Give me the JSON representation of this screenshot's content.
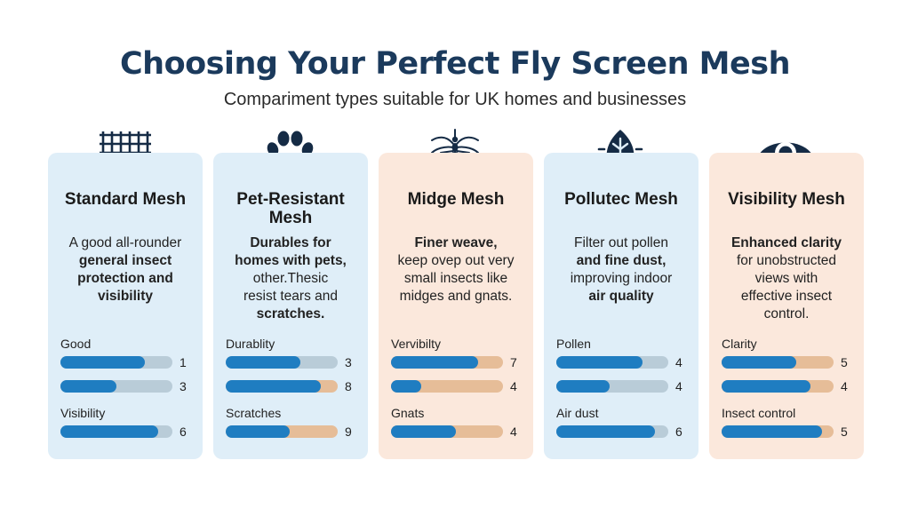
{
  "header": {
    "title": "Choosing Your Perfect Fly Screen Mesh",
    "subtitle": "Compariment types suitable for UK homes and businesses"
  },
  "colors": {
    "title": "#1b3a5c",
    "card_blue": "#dfeef8",
    "card_peach": "#fbe8dc",
    "bar_fill": "#1f7dc1",
    "track_grey": "#b9ccd8",
    "track_tan": "#e6bd98"
  },
  "cards": [
    {
      "icon": "grid-mesh-icon",
      "title": "Standard Mesh",
      "desc": [
        "A good all-rounder",
        "general insect",
        "protection and",
        "visibility"
      ],
      "metrics": [
        {
          "label": "Good",
          "value": "1",
          "fill": 0.75,
          "track": "grey"
        },
        {
          "label": "",
          "value": "3",
          "fill": 0.5,
          "track": "grey"
        },
        {
          "label": "Visibility",
          "value": "6",
          "fill": 0.87,
          "track": "grey"
        }
      ]
    },
    {
      "icon": "paw-icon",
      "title": "Pet-Resistant Mesh",
      "desc": [
        "Durables for",
        "homes with pets,",
        "other.Thesic",
        "resist tears and",
        "scratches."
      ],
      "metrics": [
        {
          "label": "Durablity",
          "value": "3",
          "fill": 0.67,
          "track": "grey"
        },
        {
          "label": "",
          "value": "8",
          "fill": 0.85,
          "track": "tan"
        },
        {
          "label": "Scratches",
          "value": "9",
          "fill": 0.57,
          "track": "tan"
        }
      ]
    },
    {
      "icon": "mosquito-icon",
      "title": "Midge Mesh",
      "desc": [
        "Finer weave,",
        "keep ovep out very",
        "small insects like",
        "midges and gnats."
      ],
      "metrics": [
        {
          "label": "Vervibilty",
          "value": "7",
          "fill": 0.78,
          "track": "tan"
        },
        {
          "label": "",
          "value": "4",
          "fill": 0.27,
          "track": "tan"
        },
        {
          "label": "Gnats",
          "value": "4",
          "fill": 0.58,
          "track": "tan"
        }
      ]
    },
    {
      "icon": "leaf-icon",
      "title": "Pollutec Mesh",
      "desc": [
        "Filter out pollen",
        "and fine dust,",
        "improving indoor",
        "air quality"
      ],
      "metrics": [
        {
          "label": "Pollen",
          "value": "4",
          "fill": 0.77,
          "track": "grey"
        },
        {
          "label": "",
          "value": "4",
          "fill": 0.48,
          "track": "grey"
        },
        {
          "label": "Air dust",
          "value": "6",
          "fill": 0.88,
          "track": "grey"
        }
      ]
    },
    {
      "icon": "eye-icon",
      "title": "Visibility Mesh",
      "desc": [
        "Enhanced clarity",
        "for unobstructed",
        "views with",
        "effective insect",
        "control."
      ],
      "metrics": [
        {
          "label": "Clarity",
          "value": "5",
          "fill": 0.67,
          "track": "tan"
        },
        {
          "label": "",
          "value": "4",
          "fill": 0.79,
          "track": "tan"
        },
        {
          "label": "Insect control",
          "value": "5",
          "fill": 0.9,
          "track": "tan"
        }
      ]
    }
  ]
}
